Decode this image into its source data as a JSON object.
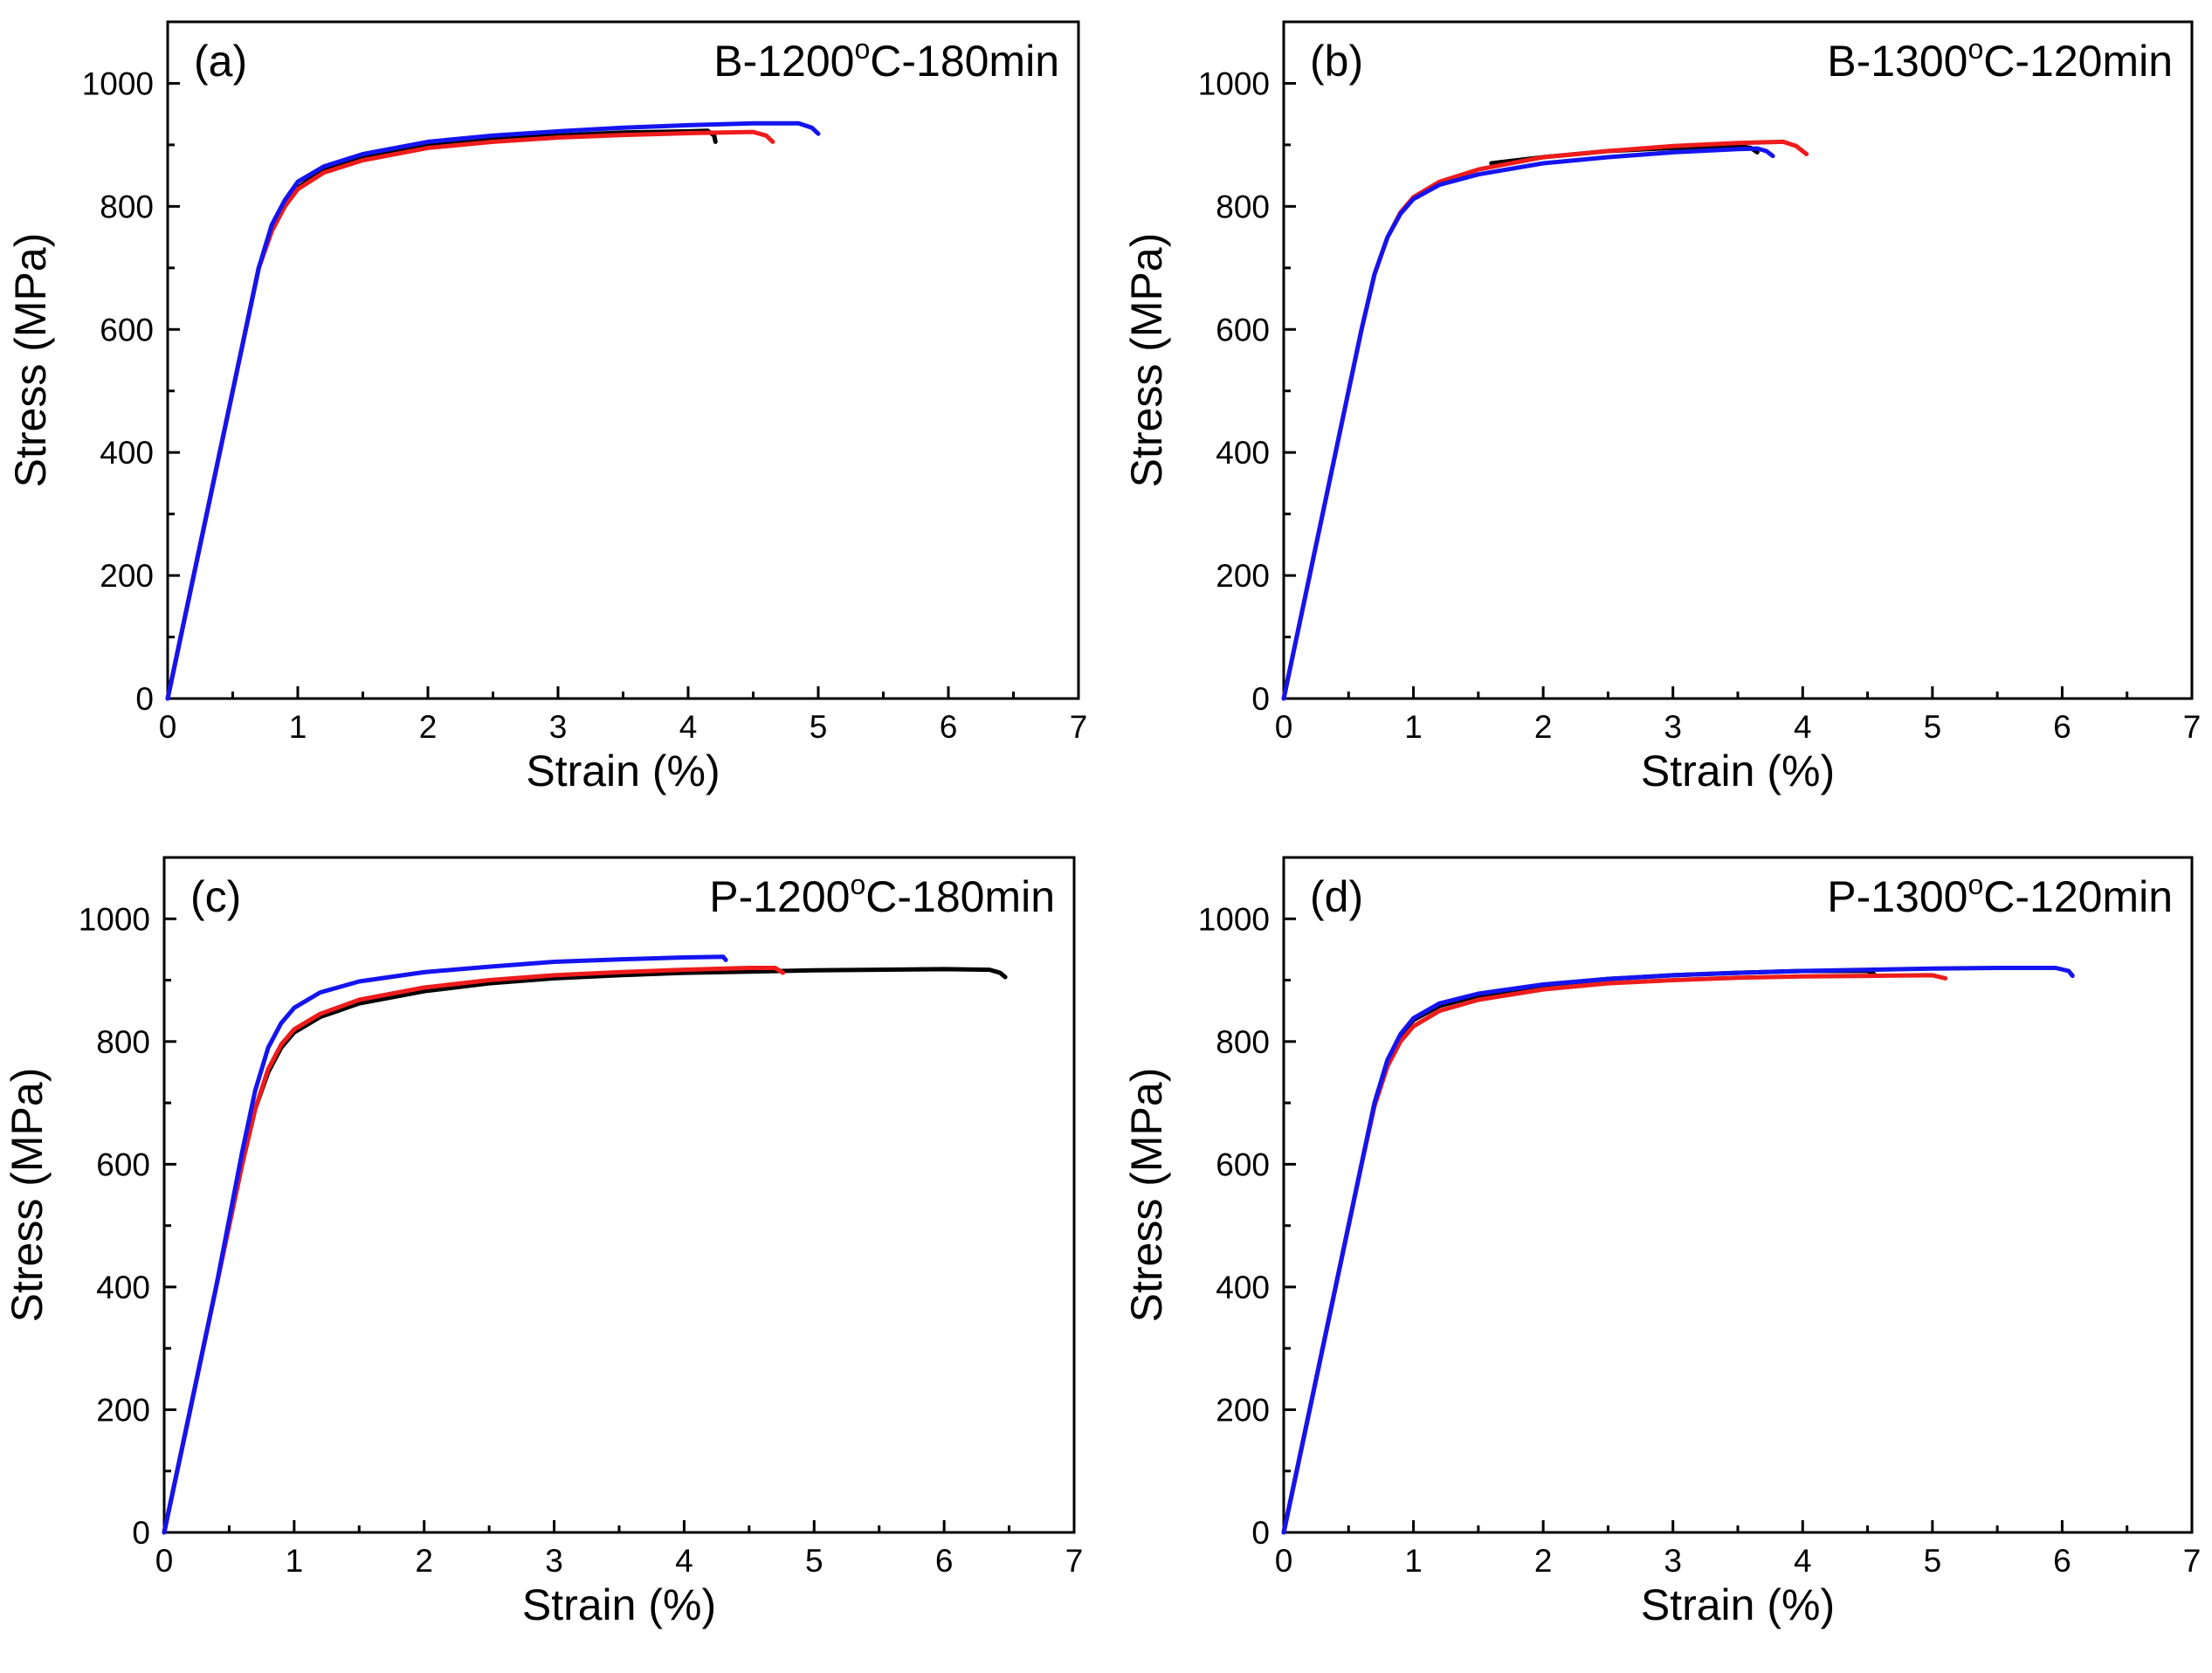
{
  "figure": {
    "description": "Four-panel stress-strain curves",
    "series_colors": {
      "black": "#000000",
      "red": "#ee1c1c",
      "blue": "#1414f0"
    }
  },
  "chart_data": [
    {
      "type": "line",
      "panel_label": "(a)",
      "title_main": "B-1200",
      "title_sup": "o",
      "title_tail": "C-180min",
      "xlabel": "Strain (%)",
      "ylabel": "Stress (MPa)",
      "xlim": [
        0,
        7
      ],
      "ylim": [
        0,
        1100
      ],
      "xticks": [
        0,
        1,
        2,
        3,
        4,
        5,
        6,
        7
      ],
      "yticks": [
        0,
        200,
        400,
        600,
        800,
        1000
      ],
      "series": [
        {
          "name": "black",
          "color": "#000000",
          "x": [
            0,
            0.2,
            0.4,
            0.6,
            0.7,
            0.8,
            0.9,
            1.0,
            1.2,
            1.5,
            2.0,
            2.5,
            3.0,
            3.5,
            4.0,
            4.15,
            4.2,
            4.21
          ],
          "y": [
            0,
            200,
            400,
            600,
            700,
            760,
            800,
            830,
            860,
            880,
            900,
            910,
            915,
            920,
            922,
            923,
            915,
            905
          ]
        },
        {
          "name": "red",
          "color": "#ee1c1c",
          "x": [
            0,
            0.2,
            0.4,
            0.6,
            0.7,
            0.8,
            0.9,
            1.0,
            1.2,
            1.5,
            2.0,
            2.5,
            3.0,
            3.5,
            4.0,
            4.5,
            4.6,
            4.65
          ],
          "y": [
            0,
            200,
            400,
            600,
            700,
            760,
            800,
            828,
            855,
            875,
            895,
            905,
            912,
            916,
            919,
            921,
            915,
            905
          ]
        },
        {
          "name": "blue",
          "color": "#1414f0",
          "x": [
            0,
            0.2,
            0.4,
            0.6,
            0.7,
            0.8,
            0.9,
            1.0,
            1.2,
            1.5,
            2.0,
            2.5,
            3.0,
            3.5,
            4.0,
            4.5,
            4.85,
            4.95,
            5.0
          ],
          "y": [
            0,
            200,
            400,
            600,
            700,
            770,
            810,
            840,
            865,
            885,
            905,
            915,
            922,
            928,
            932,
            935,
            935,
            928,
            918
          ]
        }
      ]
    },
    {
      "type": "line",
      "panel_label": "(b)",
      "title_main": "B-1300",
      "title_sup": "o",
      "title_tail": "C-120min",
      "xlabel": "Strain (%)",
      "ylabel": "Stress (MPa)",
      "xlim": [
        0,
        7
      ],
      "ylim": [
        0,
        1100
      ],
      "xticks": [
        0,
        1,
        2,
        3,
        4,
        5,
        6,
        7
      ],
      "yticks": [
        0,
        200,
        400,
        600,
        800,
        1000
      ],
      "series": [
        {
          "name": "black",
          "color": "#000000",
          "x": [
            1.6,
            2.0,
            2.5,
            3.0,
            3.5,
            3.6,
            3.65
          ],
          "y": [
            870,
            880,
            890,
            895,
            898,
            895,
            888
          ]
        },
        {
          "name": "red",
          "color": "#ee1c1c",
          "x": [
            0,
            0.2,
            0.4,
            0.6,
            0.7,
            0.8,
            0.9,
            1.0,
            1.2,
            1.5,
            2.0,
            2.5,
            3.0,
            3.5,
            3.85,
            3.95,
            4.03
          ],
          "y": [
            0,
            200,
            400,
            600,
            690,
            750,
            790,
            815,
            840,
            860,
            880,
            890,
            898,
            903,
            905,
            898,
            885
          ]
        },
        {
          "name": "blue",
          "color": "#1414f0",
          "x": [
            0,
            0.2,
            0.4,
            0.6,
            0.7,
            0.8,
            0.9,
            1.0,
            1.2,
            1.5,
            2.0,
            2.5,
            3.0,
            3.5,
            3.65,
            3.72,
            3.77
          ],
          "y": [
            0,
            200,
            400,
            600,
            690,
            750,
            788,
            812,
            835,
            852,
            870,
            880,
            888,
            893,
            894,
            890,
            882
          ]
        }
      ]
    },
    {
      "type": "line",
      "panel_label": "(c)",
      "title_main": "P-1200",
      "title_sup": "o",
      "title_tail": "C-180min",
      "xlabel": "Strain (%)",
      "ylabel": "Stress (MPa)",
      "xlim": [
        0,
        7
      ],
      "ylim": [
        0,
        1100
      ],
      "xticks": [
        0,
        1,
        2,
        3,
        4,
        5,
        6,
        7
      ],
      "yticks": [
        0,
        200,
        400,
        600,
        800,
        1000
      ],
      "series": [
        {
          "name": "black",
          "color": "#000000",
          "x": [
            0,
            0.2,
            0.4,
            0.6,
            0.7,
            0.8,
            0.9,
            1.0,
            1.2,
            1.5,
            2.0,
            2.5,
            3.0,
            3.5,
            4.0,
            5.0,
            6.0,
            6.35,
            6.43,
            6.47
          ],
          "y": [
            0,
            200,
            400,
            600,
            690,
            750,
            790,
            815,
            840,
            862,
            882,
            895,
            903,
            908,
            912,
            916,
            918,
            917,
            912,
            905
          ]
        },
        {
          "name": "red",
          "color": "#ee1c1c",
          "x": [
            0,
            0.2,
            0.4,
            0.6,
            0.7,
            0.8,
            0.9,
            1.0,
            1.2,
            1.5,
            2.0,
            2.5,
            3.0,
            3.5,
            4.0,
            4.5,
            4.7,
            4.76
          ],
          "y": [
            0,
            200,
            400,
            600,
            690,
            755,
            795,
            820,
            845,
            868,
            888,
            900,
            908,
            913,
            917,
            920,
            920,
            912
          ]
        },
        {
          "name": "blue",
          "color": "#1414f0",
          "x": [
            0,
            0.2,
            0.4,
            0.6,
            0.7,
            0.8,
            0.9,
            1.0,
            1.2,
            1.5,
            2.0,
            2.5,
            3.0,
            3.5,
            4.0,
            4.3,
            4.32
          ],
          "y": [
            0,
            200,
            400,
            620,
            720,
            790,
            830,
            855,
            880,
            898,
            913,
            922,
            930,
            934,
            937,
            938,
            933
          ]
        }
      ]
    },
    {
      "type": "line",
      "panel_label": "(d)",
      "title_main": "P-1300",
      "title_sup": "o",
      "title_tail": "C-120min",
      "xlabel": "Strain (%)",
      "ylabel": "Stress (MPa)",
      "xlim": [
        0,
        7
      ],
      "ylim": [
        0,
        1100
      ],
      "xticks": [
        0,
        1,
        2,
        3,
        4,
        5,
        6,
        7
      ],
      "yticks": [
        0,
        200,
        400,
        600,
        800,
        1000
      ],
      "series": [
        {
          "name": "black",
          "color": "#000000",
          "x": [
            0,
            0.2,
            0.4,
            0.6,
            0.7,
            0.8,
            0.9,
            1.0,
            1.2,
            1.5,
            2.0,
            2.5,
            3.0,
            3.5,
            4.0,
            4.5,
            4.55
          ],
          "y": [
            0,
            200,
            400,
            600,
            700,
            770,
            810,
            835,
            858,
            875,
            892,
            902,
            908,
            912,
            915,
            915,
            910
          ]
        },
        {
          "name": "red",
          "color": "#ee1c1c",
          "x": [
            0,
            0.2,
            0.4,
            0.6,
            0.7,
            0.8,
            0.9,
            1.0,
            1.2,
            1.5,
            2.0,
            2.5,
            3.0,
            3.5,
            4.0,
            4.5,
            5.0,
            5.1
          ],
          "y": [
            0,
            200,
            400,
            600,
            695,
            760,
            800,
            825,
            850,
            868,
            885,
            895,
            900,
            904,
            906,
            907,
            908,
            903
          ]
        },
        {
          "name": "blue",
          "color": "#1414f0",
          "x": [
            0,
            0.2,
            0.4,
            0.6,
            0.7,
            0.8,
            0.9,
            1.0,
            1.2,
            1.5,
            2.0,
            2.5,
            3.0,
            3.5,
            4.0,
            4.5,
            5.0,
            5.5,
            5.95,
            6.05,
            6.08
          ],
          "y": [
            0,
            200,
            400,
            600,
            700,
            770,
            812,
            838,
            862,
            878,
            893,
            902,
            908,
            912,
            915,
            917,
            919,
            920,
            920,
            915,
            907
          ]
        }
      ]
    }
  ]
}
